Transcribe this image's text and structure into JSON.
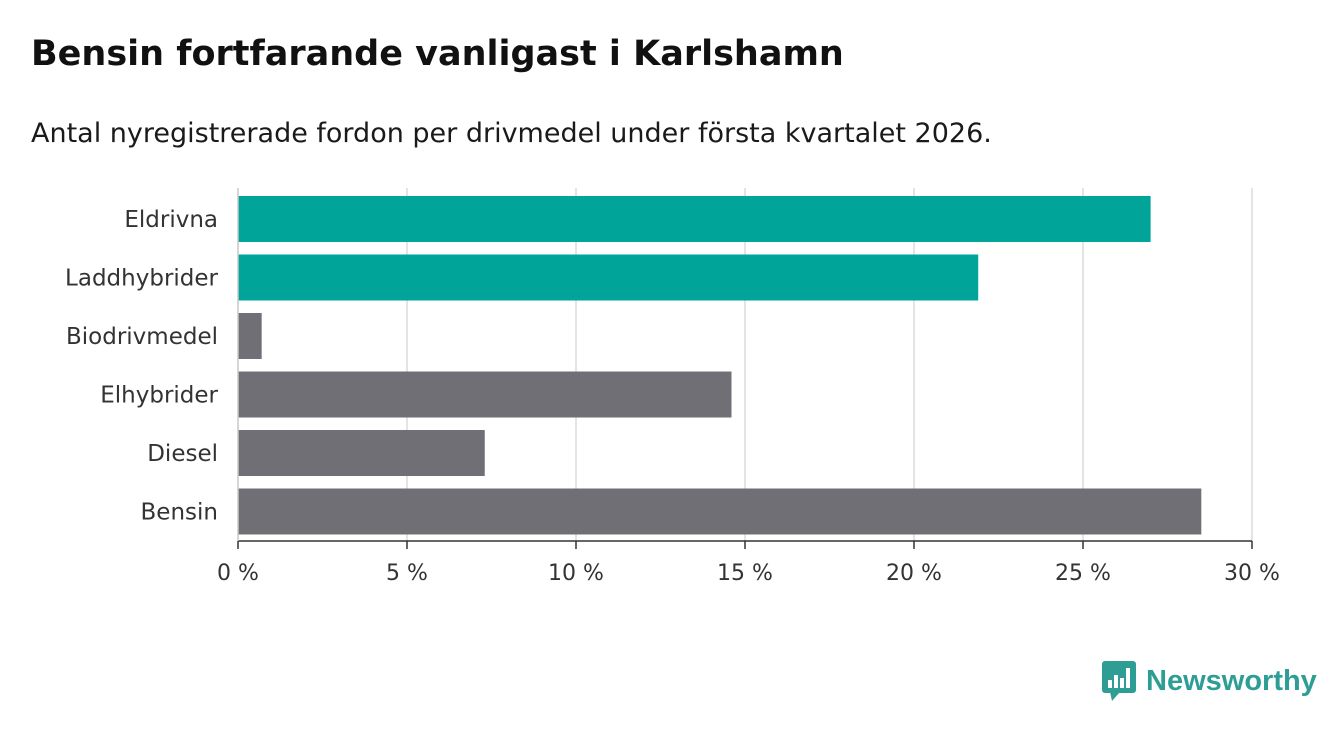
{
  "header": {
    "title": "Bensin fortfarande vanligast i Karlshamn",
    "subtitle": "Antal nyregistrerade fordon per drivmedel under första kvartalet 2026."
  },
  "brand": {
    "name": "Newsworthy",
    "icon": "bar-chart-speech-bubble-icon",
    "color": "#2e9e95"
  },
  "chart_data": {
    "type": "bar",
    "orientation": "horizontal",
    "categories": [
      "Eldrivna",
      "Laddhybrider",
      "Biodrivmedel",
      "Elhybrider",
      "Diesel",
      "Bensin"
    ],
    "values": [
      27.0,
      21.9,
      0.7,
      14.6,
      7.3,
      28.5
    ],
    "colors": [
      "#00a499",
      "#00a499",
      "#706f75",
      "#706f75",
      "#706f75",
      "#706f75"
    ],
    "xlim": [
      0,
      30
    ],
    "xticks": [
      0,
      5,
      10,
      15,
      20,
      25,
      30
    ],
    "xtick_labels": [
      "0 %",
      "5 %",
      "10 %",
      "15 %",
      "20 %",
      "25 %",
      "30 %"
    ],
    "grid": true,
    "legend": "none"
  }
}
